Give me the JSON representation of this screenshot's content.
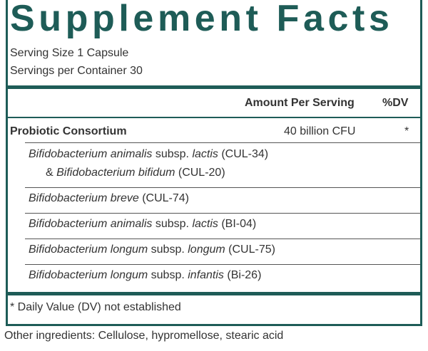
{
  "title": "Supplement Facts",
  "serving_size": "Serving Size 1 Capsule",
  "servings_per_container": "Servings per Container 30",
  "table": {
    "headers": [
      "Amount Per Serving",
      "%DV"
    ],
    "rows": [
      {
        "name": "Probiotic Consortium",
        "amount": "40 billion CFU",
        "dv": "*"
      }
    ],
    "strains": [
      {
        "lines": [
          [
            {
              "text": "Bifidobacterium animalis",
              "italic": true
            },
            {
              "text": " subsp. ",
              "italic": false
            },
            {
              "text": "lactis",
              "italic": true
            },
            {
              "text": " (CUL-34)",
              "italic": false
            }
          ],
          [
            {
              "text": "& ",
              "italic": false
            },
            {
              "text": "Bifidobacterium bifidum",
              "italic": true
            },
            {
              "text": " (CUL-20)",
              "italic": false
            }
          ]
        ]
      },
      {
        "lines": [
          [
            {
              "text": "Bifidobacterium breve",
              "italic": true
            },
            {
              "text": " (CUL-74)",
              "italic": false
            }
          ]
        ]
      },
      {
        "lines": [
          [
            {
              "text": "Bifidobacterium animalis",
              "italic": true
            },
            {
              "text": " subsp. ",
              "italic": false
            },
            {
              "text": "lactis",
              "italic": true
            },
            {
              "text": " (BI-04)",
              "italic": false
            }
          ]
        ]
      },
      {
        "lines": [
          [
            {
              "text": "Bifidobacterium longum",
              "italic": true
            },
            {
              "text": " subsp. ",
              "italic": false
            },
            {
              "text": "longum",
              "italic": true
            },
            {
              "text": " (CUL-75)",
              "italic": false
            }
          ]
        ]
      },
      {
        "lines": [
          [
            {
              "text": "Bifidobacterium longum",
              "italic": true
            },
            {
              "text": " subsp. ",
              "italic": false
            },
            {
              "text": "infantis",
              "italic": true
            },
            {
              "text": " (Bi-26)",
              "italic": false
            }
          ]
        ]
      }
    ]
  },
  "footnote": "* Daily Value (DV) not established",
  "other_ingredients": "Other ingredients: Cellulose, hypromellose, stearic acid"
}
